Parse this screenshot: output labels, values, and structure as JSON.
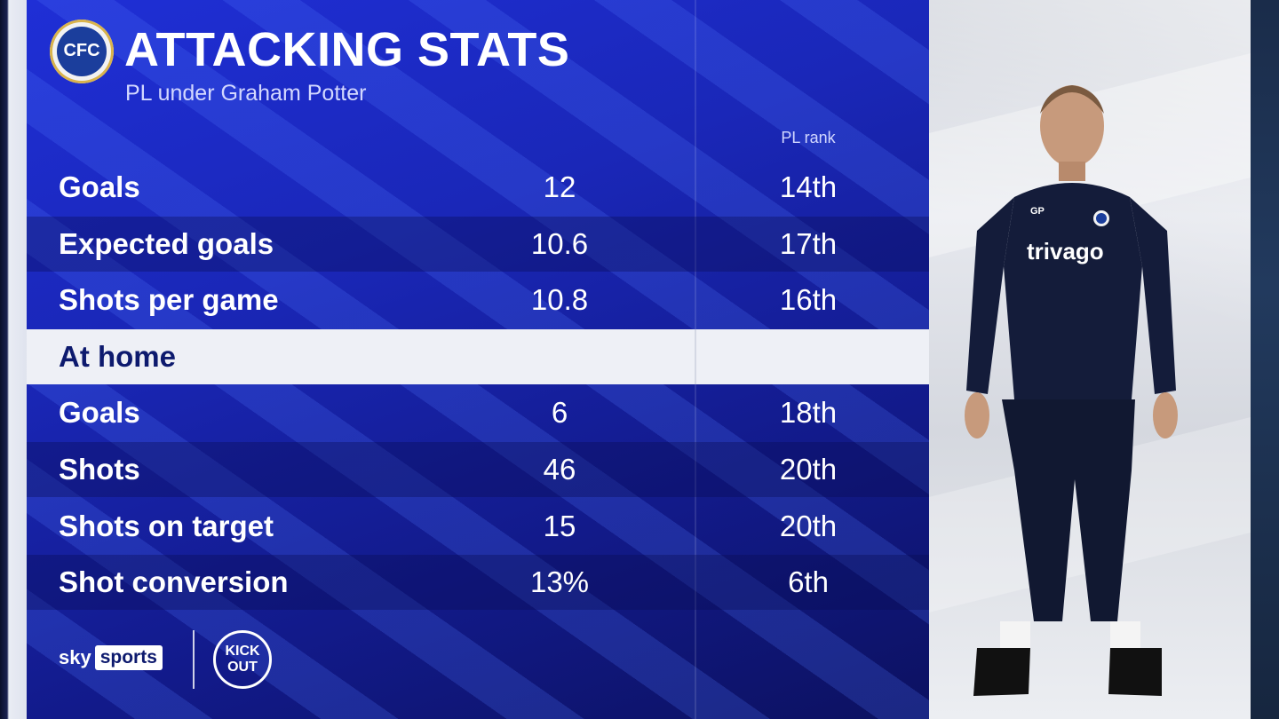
{
  "header": {
    "title": "ATTACKING STATS",
    "subtitle": "PL under Graham Potter",
    "column_header": "PL rank"
  },
  "stats": [
    {
      "label": "Goals",
      "value": "12",
      "rank": "14th"
    },
    {
      "label": "Expected goals",
      "value": "10.6",
      "rank": "17th"
    },
    {
      "label": "Shots per game",
      "value": "10.8",
      "rank": "16th"
    }
  ],
  "home_section": {
    "label": "At home",
    "stats": [
      {
        "label": "Goals",
        "value": "6",
        "rank": "18th"
      },
      {
        "label": "Shots",
        "value": "46",
        "rank": "20th"
      },
      {
        "label": "Shots on target",
        "value": "15",
        "rank": "20th"
      },
      {
        "label": "Shot conversion",
        "value": "13%",
        "rank": "6th"
      }
    ]
  },
  "branding": {
    "sky": "sky",
    "sports": "sports",
    "kickout_line1": "KICK",
    "kickout_line2": "OUT"
  },
  "photo": {
    "shirt_sponsor": "trivago",
    "initials": "GP"
  },
  "colors": {
    "panel_blue": "#1a27b8",
    "section_bar": "#eef0f6",
    "text_primary": "#ffffff"
  },
  "icons": {
    "club_crest": "chelsea-crest-icon"
  }
}
